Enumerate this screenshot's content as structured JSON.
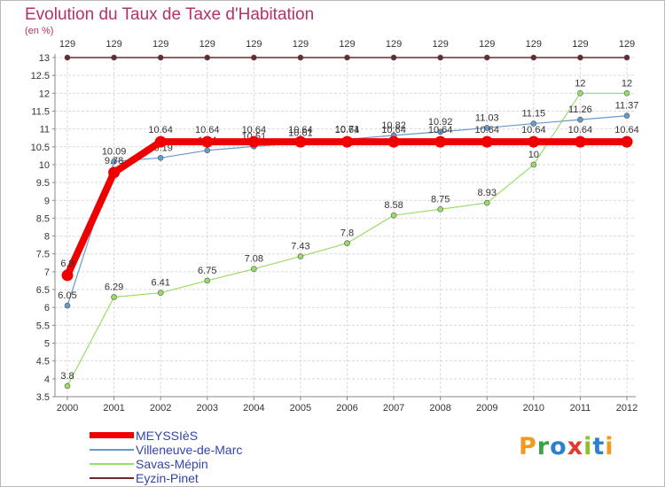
{
  "title": "Evolution du Taux de Taxe d'Habitation",
  "ylabel": "(en %)",
  "brand": "Proxiti",
  "brand_colors": [
    "#f29a1f",
    "#3aa34a",
    "#2f7fd0",
    "#e23b2e",
    "#8fbf2b",
    "#2f7fd0",
    "#f29a1f"
  ],
  "chart_data": {
    "type": "line",
    "title": "Evolution du Taux de Taxe d'Habitation",
    "ylabel": "(en %)",
    "xlabel": "",
    "x": [
      2000,
      2001,
      2002,
      2003,
      2004,
      2005,
      2006,
      2007,
      2008,
      2009,
      2010,
      2011,
      2012
    ],
    "ylim": [
      3.5,
      13
    ],
    "yticks": [
      3.5,
      4,
      4.5,
      5,
      5.5,
      6,
      6.5,
      7,
      7.5,
      8,
      8.5,
      9,
      9.5,
      10,
      10.5,
      11,
      11.5,
      12,
      12.5,
      13
    ],
    "grid": true,
    "legend_position": "bottom-left",
    "series": [
      {
        "name": "Eyzin-Pinet",
        "color": "#6b2a2a",
        "values": [
          129,
          129,
          129,
          129,
          129,
          129,
          129,
          129,
          129,
          129,
          129,
          129,
          129
        ]
      },
      {
        "name": "Savas-Mépin",
        "color": "#99dd66",
        "values": [
          3.8,
          6.29,
          6.41,
          6.75,
          7.08,
          7.43,
          7.8,
          8.58,
          8.75,
          8.93,
          10,
          12,
          12
        ]
      },
      {
        "name": "Villeneuve-de-Marc",
        "color": "#6699cc",
        "values": [
          6.05,
          10.09,
          10.19,
          10.4,
          10.51,
          10.61,
          10.71,
          10.82,
          10.92,
          11.03,
          11.15,
          11.26,
          11.37
        ]
      },
      {
        "name": "MEYSSIèS",
        "color": "#ee0000",
        "values": [
          6.9,
          9.78,
          10.64,
          10.64,
          10.64,
          10.64,
          10.64,
          10.64,
          10.64,
          10.64,
          10.64,
          10.64,
          10.64
        ]
      }
    ]
  }
}
